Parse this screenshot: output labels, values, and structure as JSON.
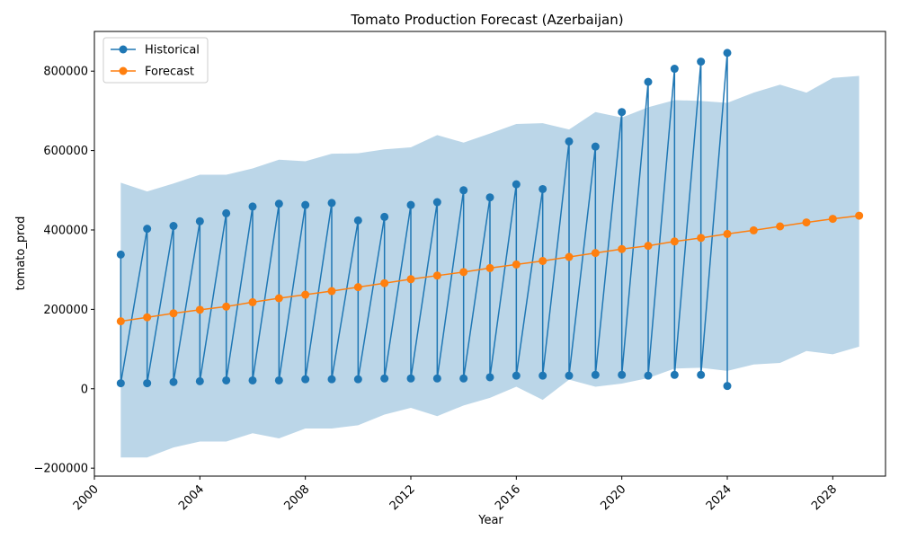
{
  "chart_data": {
    "type": "line",
    "title": "Tomato Production Forecast (Azerbaijan)",
    "xlabel": "Year",
    "ylabel": "tomato_prod",
    "xlim": [
      2000,
      2030
    ],
    "ylim": [
      -220000,
      900000
    ],
    "xticks": [
      2000,
      2004,
      2008,
      2012,
      2016,
      2020,
      2024,
      2028
    ],
    "yticks": [
      -200000,
      0,
      200000,
      400000,
      600000,
      800000
    ],
    "ytick_labels": [
      "−200000",
      "0",
      "200000",
      "400000",
      "600000",
      "800000"
    ],
    "legend_position": "top-left",
    "grid": false,
    "series": [
      {
        "name": "Historical",
        "color": "#1f77b4",
        "marker": "circle",
        "note": "alternating high/low points per year",
        "x": [
          2001,
          2001,
          2002,
          2002,
          2003,
          2003,
          2004,
          2004,
          2005,
          2005,
          2006,
          2006,
          2007,
          2007,
          2008,
          2008,
          2009,
          2009,
          2010,
          2010,
          2011,
          2011,
          2012,
          2012,
          2013,
          2013,
          2014,
          2014,
          2015,
          2015,
          2016,
          2016,
          2017,
          2017,
          2018,
          2018,
          2019,
          2019,
          2020,
          2020,
          2021,
          2021,
          2022,
          2022,
          2023,
          2023,
          2024,
          2024
        ],
        "y": [
          338000,
          14000,
          403000,
          14000,
          410000,
          17000,
          422000,
          19000,
          442000,
          21000,
          459000,
          21000,
          466000,
          21000,
          463000,
          24000,
          468000,
          24000,
          424000,
          24000,
          433000,
          26000,
          463000,
          26000,
          470000,
          26000,
          500000,
          26000,
          482000,
          29000,
          515000,
          33000,
          503000,
          33000,
          623000,
          33000,
          610000,
          35000,
          697000,
          35000,
          773000,
          33000,
          806000,
          35000,
          824000,
          35000,
          846000,
          7000
        ]
      },
      {
        "name": "Forecast",
        "color": "#ff7f0e",
        "marker": "circle",
        "x": [
          2001,
          2002,
          2003,
          2004,
          2005,
          2006,
          2007,
          2008,
          2009,
          2010,
          2011,
          2012,
          2013,
          2014,
          2015,
          2016,
          2017,
          2018,
          2019,
          2020,
          2021,
          2022,
          2023,
          2024,
          2025,
          2026,
          2027,
          2028,
          2029
        ],
        "y": [
          170000,
          180000,
          190000,
          199000,
          207000,
          218000,
          228000,
          237000,
          246000,
          256000,
          266000,
          276000,
          285000,
          294000,
          304000,
          313000,
          322000,
          332000,
          342000,
          352000,
          360000,
          371000,
          380000,
          390000,
          399000,
          409000,
          419000,
          428000,
          436000
        ]
      }
    ],
    "confidence_band": {
      "color": "#1f77b4",
      "opacity": 0.3,
      "x": [
        2001,
        2002,
        2003,
        2004,
        2005,
        2006,
        2007,
        2008,
        2009,
        2010,
        2011,
        2012,
        2013,
        2014,
        2015,
        2016,
        2017,
        2018,
        2019,
        2020,
        2021,
        2022,
        2023,
        2024,
        2025,
        2026,
        2027,
        2028,
        2029
      ],
      "upper": [
        519000,
        497000,
        517000,
        539000,
        539000,
        555000,
        577000,
        573000,
        592000,
        593000,
        603000,
        608000,
        639000,
        620000,
        643000,
        667000,
        669000,
        653000,
        697000,
        683000,
        709000,
        727000,
        725000,
        720000,
        746000,
        766000,
        746000,
        783000,
        788000
      ],
      "lower": [
        -173000,
        -173000,
        -148000,
        -133000,
        -133000,
        -112000,
        -125000,
        -100000,
        -100000,
        -92000,
        -65000,
        -48000,
        -69000,
        -42000,
        -23000,
        5000,
        -28000,
        23000,
        5000,
        13000,
        27000,
        51000,
        53000,
        45000,
        61000,
        65000,
        95000,
        87000,
        106000
      ]
    }
  }
}
